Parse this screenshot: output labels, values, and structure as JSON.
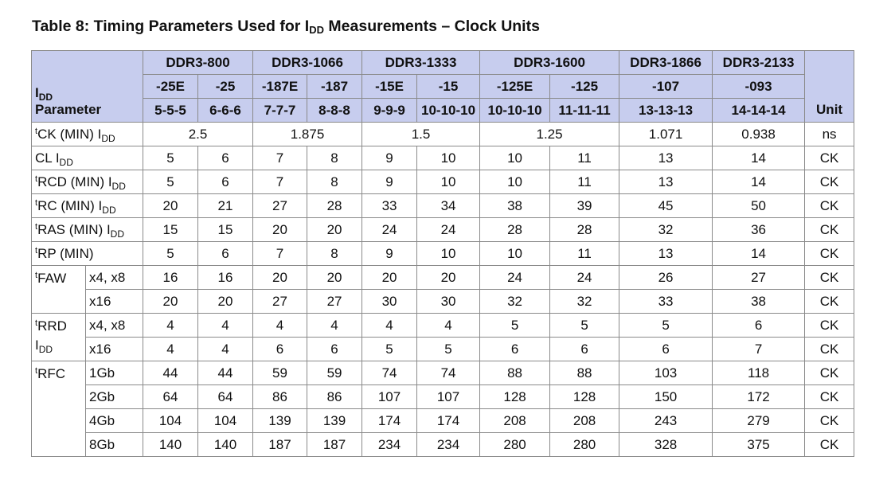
{
  "title": {
    "main": "Table 8: Timing Parameters Used for I",
    "sub": "DD",
    "rest": " Measurements – Clock Units"
  },
  "header": {
    "param_i": "I",
    "param_sub": "DD",
    "param_word": "Parameter",
    "unit": "Unit",
    "groups": [
      "DDR3-800",
      "DDR3-1066",
      "DDR3-1333",
      "DDR3-1600",
      "DDR3-1866",
      "DDR3-2133"
    ],
    "speeds": [
      "-25E",
      "-25",
      "-187E",
      "-187",
      "-15E",
      "-15",
      "-125E",
      "-125",
      "-107",
      "-093"
    ],
    "timings": [
      "5-5-5",
      "6-6-6",
      "7-7-7",
      "8-8-8",
      "9-9-9",
      "10-10-10",
      "10-10-10",
      "11-11-11",
      "13-13-13",
      "14-14-14"
    ]
  },
  "tck": {
    "sup": "t",
    "name": "CK (MIN) I",
    "sub": "DD",
    "values": [
      "2.5",
      "1.875",
      "1.5",
      "1.25",
      "1.071",
      "0.938"
    ],
    "unit": "ns"
  },
  "rows": [
    {
      "sup": "",
      "name": "CL I",
      "sub": "DD",
      "values": [
        "5",
        "6",
        "7",
        "8",
        "9",
        "10",
        "10",
        "11",
        "13",
        "14"
      ],
      "unit": "CK"
    },
    {
      "sup": "t",
      "name": "RCD (MIN) I",
      "sub": "DD",
      "values": [
        "5",
        "6",
        "7",
        "8",
        "9",
        "10",
        "10",
        "11",
        "13",
        "14"
      ],
      "unit": "CK"
    },
    {
      "sup": "t",
      "name": "RC (MIN) I",
      "sub": "DD",
      "values": [
        "20",
        "21",
        "27",
        "28",
        "33",
        "34",
        "38",
        "39",
        "45",
        "50"
      ],
      "unit": "CK"
    },
    {
      "sup": "t",
      "name": "RAS (MIN) I",
      "sub": "DD",
      "values": [
        "15",
        "15",
        "20",
        "20",
        "24",
        "24",
        "28",
        "28",
        "32",
        "36"
      ],
      "unit": "CK"
    },
    {
      "sup": "t",
      "name": "RP (MIN)",
      "sub": "",
      "values": [
        "5",
        "6",
        "7",
        "8",
        "9",
        "10",
        "10",
        "11",
        "13",
        "14"
      ],
      "unit": "CK"
    }
  ],
  "faw": {
    "sup": "t",
    "name": "FAW",
    "rows": [
      {
        "label": "x4, x8",
        "values": [
          "16",
          "16",
          "20",
          "20",
          "20",
          "20",
          "24",
          "24",
          "26",
          "27"
        ],
        "unit": "CK"
      },
      {
        "label": "x16",
        "values": [
          "20",
          "20",
          "27",
          "27",
          "30",
          "30",
          "32",
          "32",
          "33",
          "38"
        ],
        "unit": "CK"
      }
    ]
  },
  "rrd": {
    "sup": "t",
    "name": "RRD",
    "line2_i": "I",
    "line2_sub": "DD",
    "rows": [
      {
        "label": "x4, x8",
        "values": [
          "4",
          "4",
          "4",
          "4",
          "4",
          "4",
          "5",
          "5",
          "5",
          "6"
        ],
        "unit": "CK"
      },
      {
        "label": "x16",
        "values": [
          "4",
          "4",
          "6",
          "6",
          "5",
          "5",
          "6",
          "6",
          "6",
          "7"
        ],
        "unit": "CK"
      }
    ]
  },
  "rfc": {
    "sup": "t",
    "name": "RFC",
    "rows": [
      {
        "label": "1Gb",
        "values": [
          "44",
          "44",
          "59",
          "59",
          "74",
          "74",
          "88",
          "88",
          "103",
          "118"
        ],
        "unit": "CK"
      },
      {
        "label": "2Gb",
        "values": [
          "64",
          "64",
          "86",
          "86",
          "107",
          "107",
          "128",
          "128",
          "150",
          "172"
        ],
        "unit": "CK"
      },
      {
        "label": "4Gb",
        "values": [
          "104",
          "104",
          "139",
          "139",
          "174",
          "174",
          "208",
          "208",
          "243",
          "279"
        ],
        "unit": "CK"
      },
      {
        "label": "8Gb",
        "values": [
          "140",
          "140",
          "187",
          "187",
          "234",
          "234",
          "280",
          "280",
          "328",
          "375"
        ],
        "unit": "CK"
      }
    ]
  }
}
